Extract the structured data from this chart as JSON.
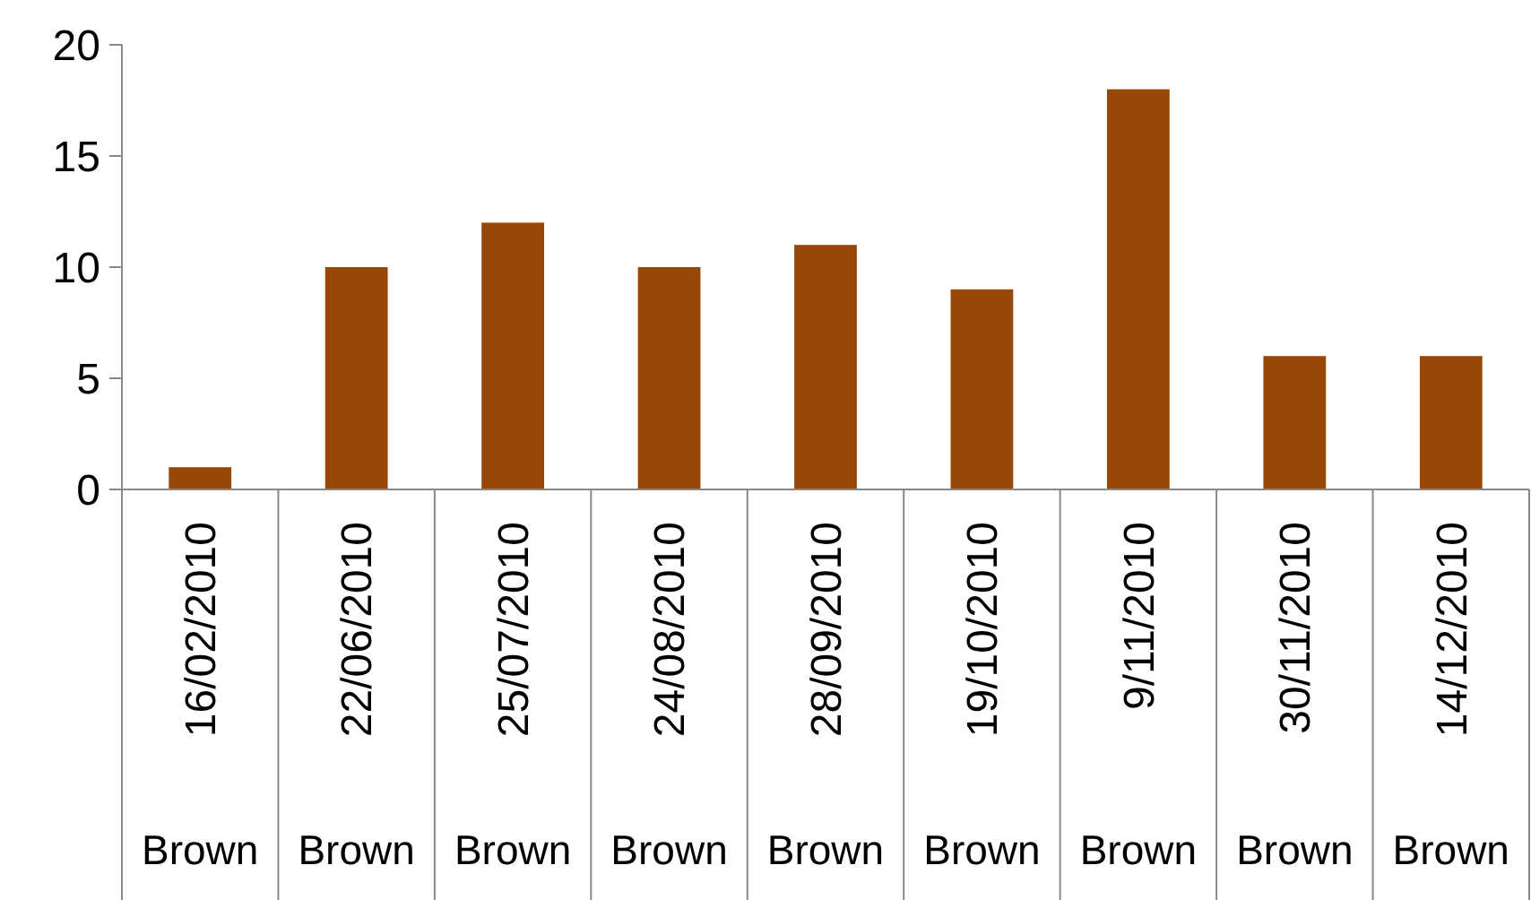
{
  "chart_data": {
    "type": "bar",
    "categories": [
      "16/02/2010",
      "22/06/2010",
      "25/07/2010",
      "24/08/2010",
      "28/09/2010",
      "19/10/2010",
      "9/11/2010",
      "30/11/2010",
      "14/12/2010"
    ],
    "values": [
      1,
      10,
      12,
      10,
      11,
      9,
      18,
      6,
      6
    ],
    "color": "#974706",
    "ylim": [
      0,
      20
    ],
    "yticks": [
      0,
      5,
      10,
      15,
      20
    ],
    "grid": false,
    "annotations": [
      "Brown",
      "Brown",
      "Brown",
      "Brown",
      "Brown",
      "Brown",
      "Brown",
      "Brown",
      "Brown"
    ]
  }
}
